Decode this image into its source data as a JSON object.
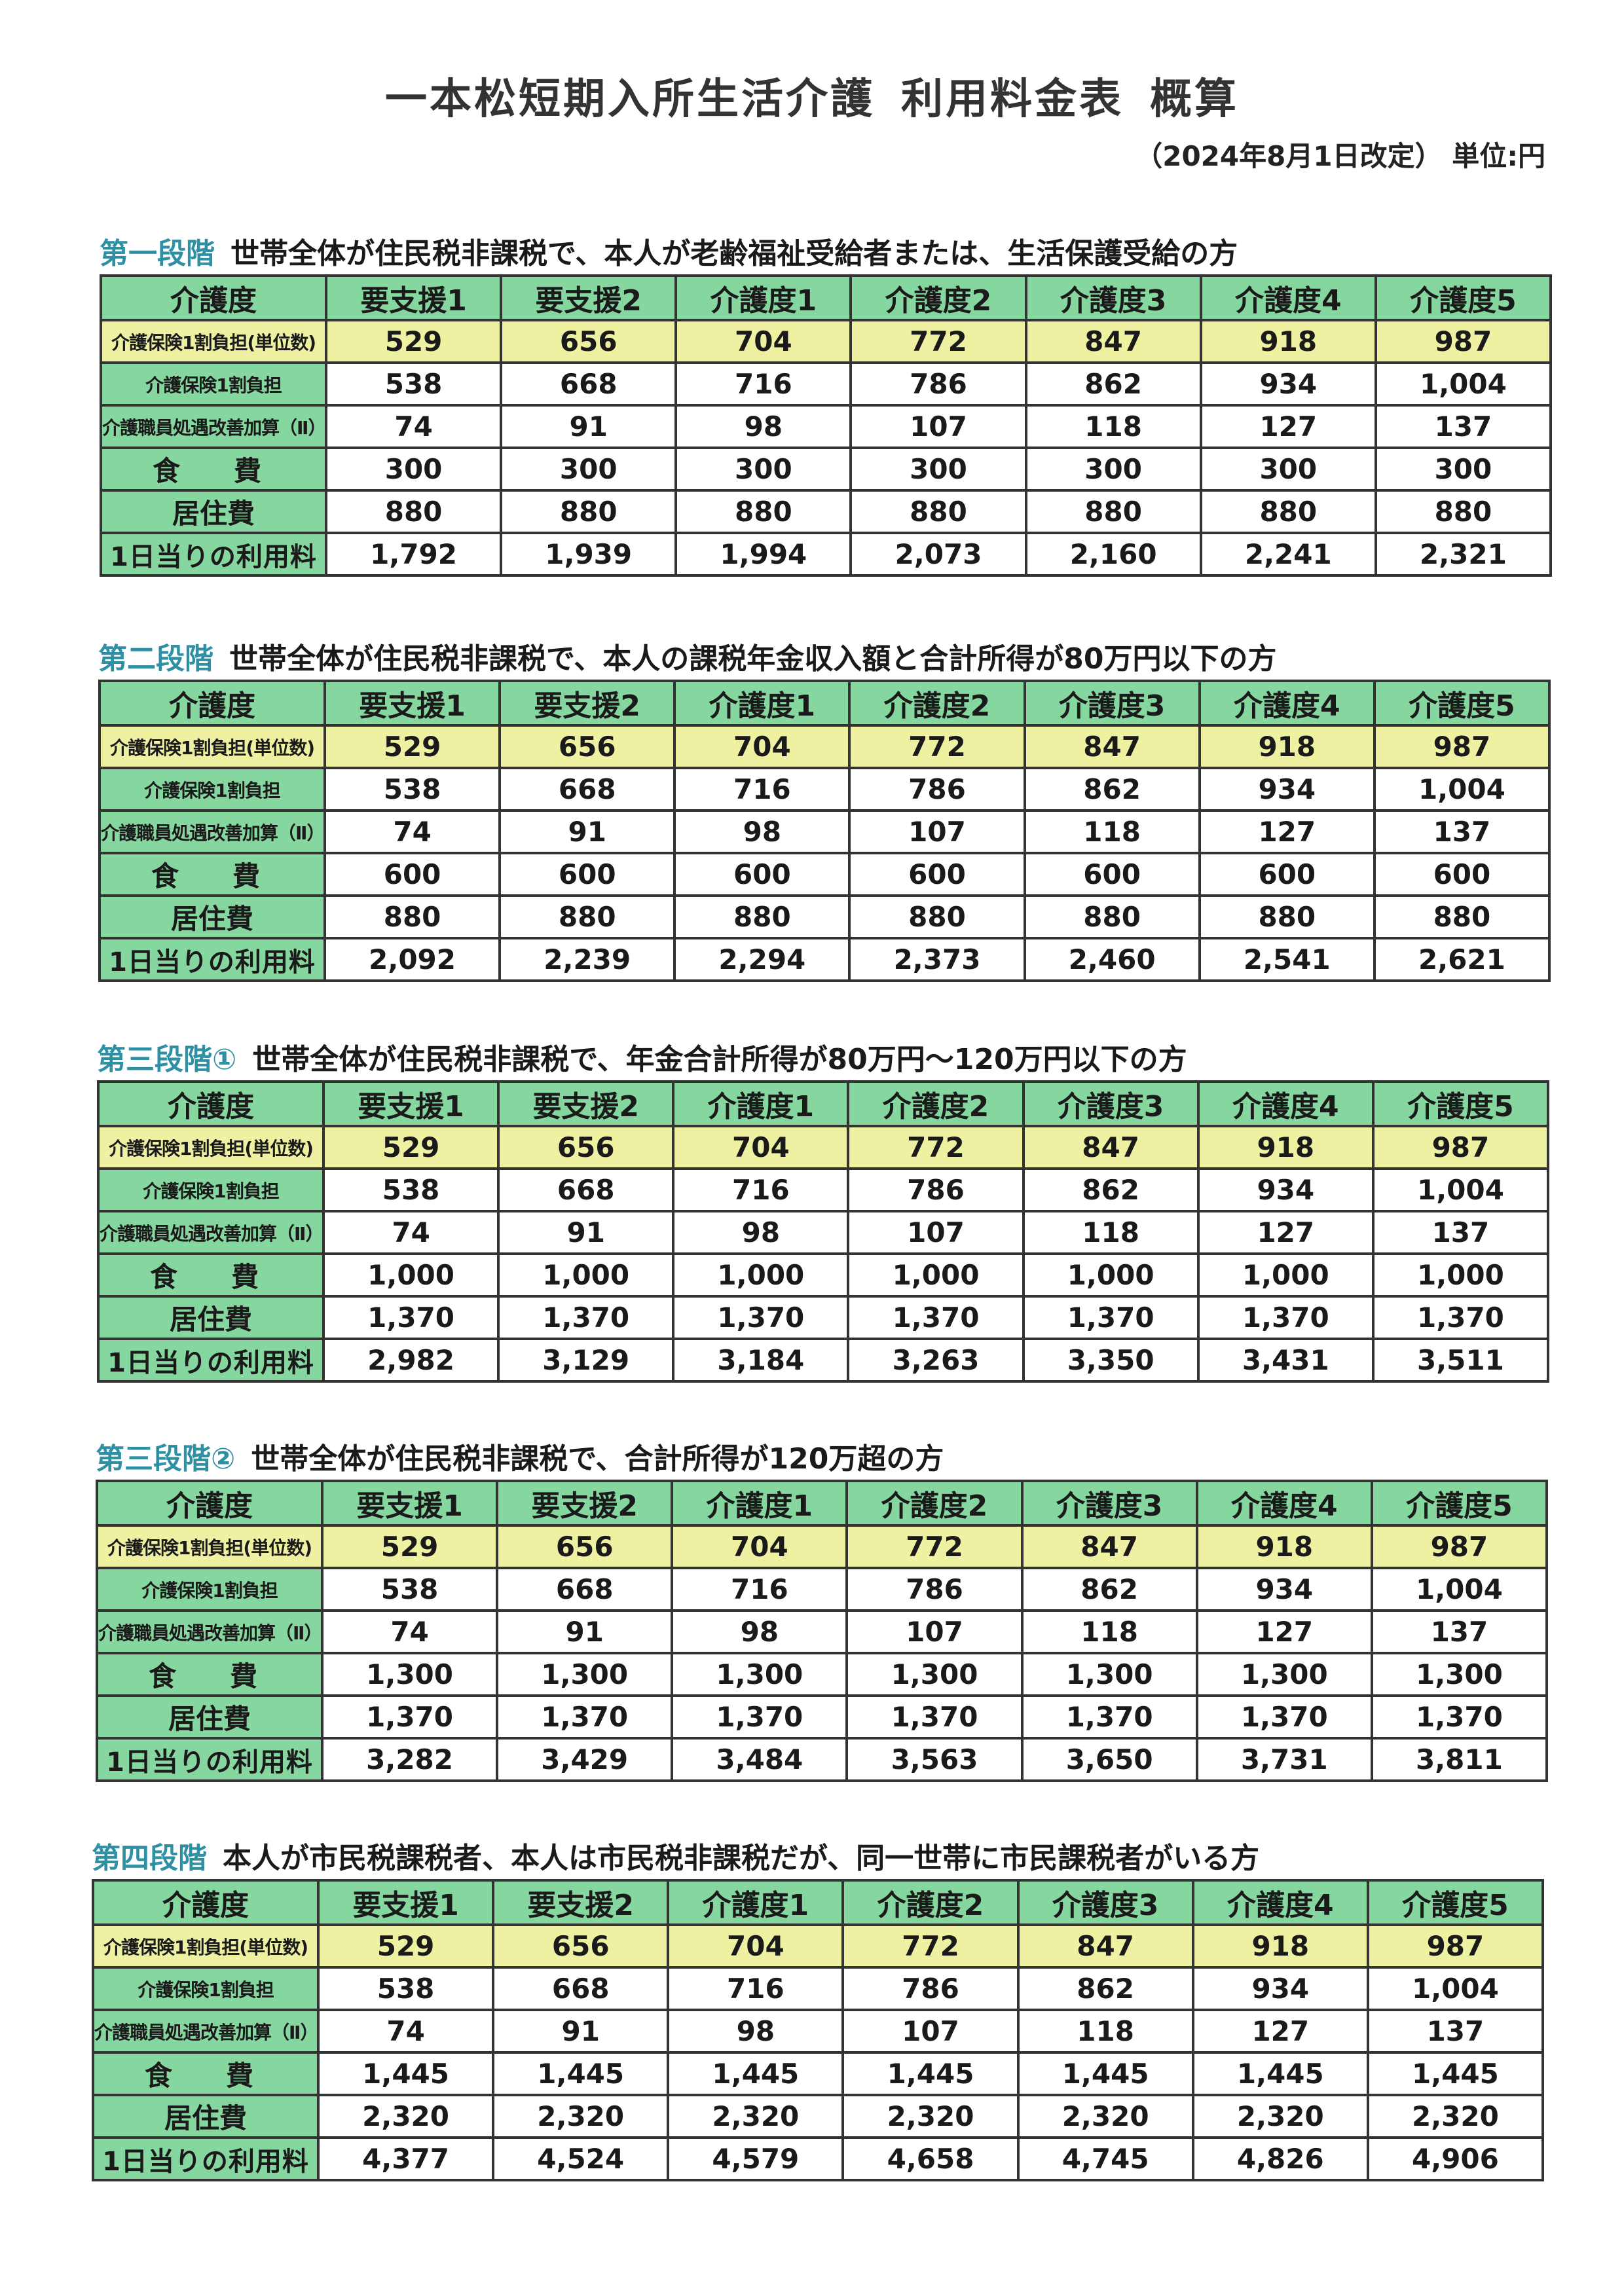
{
  "title": {
    "part1": "一本松短期入所生活介護",
    "part2": "利用料金表",
    "part3": "概算"
  },
  "subtitle": "（2024年8月1日改定） 単位:円",
  "colors": {
    "header_green": "#86d69f",
    "highlight_yellow": "#eef1a2",
    "stage_teal": "#2f8fa3"
  },
  "columns": [
    "介護度",
    "要支援1",
    "要支援2",
    "介護度1",
    "介護度2",
    "介護度3",
    "介護度4",
    "介護度5"
  ],
  "row_labels": [
    "介護保険1割負担(単位数)",
    "介護保険1割負担",
    "介護職員処遇改善加算（Ⅱ）",
    "食　費",
    "居住費",
    "1日当りの利用料"
  ],
  "sections": [
    {
      "stage": "第一段階",
      "description": "世帯全体が住民税非課税で、本人が老齢福祉受給者または、生活保護受給の方",
      "rows": [
        [
          "529",
          "656",
          "704",
          "772",
          "847",
          "918",
          "987"
        ],
        [
          "538",
          "668",
          "716",
          "786",
          "862",
          "934",
          "1,004"
        ],
        [
          "74",
          "91",
          "98",
          "107",
          "118",
          "127",
          "137"
        ],
        [
          "300",
          "300",
          "300",
          "300",
          "300",
          "300",
          "300"
        ],
        [
          "880",
          "880",
          "880",
          "880",
          "880",
          "880",
          "880"
        ],
        [
          "1,792",
          "1,939",
          "1,994",
          "2,073",
          "2,160",
          "2,241",
          "2,321"
        ]
      ]
    },
    {
      "stage": "第二段階",
      "description": "世帯全体が住民税非課税で、本人の課税年金収入額と合計所得が80万円以下の方",
      "rows": [
        [
          "529",
          "656",
          "704",
          "772",
          "847",
          "918",
          "987"
        ],
        [
          "538",
          "668",
          "716",
          "786",
          "862",
          "934",
          "1,004"
        ],
        [
          "74",
          "91",
          "98",
          "107",
          "118",
          "127",
          "137"
        ],
        [
          "600",
          "600",
          "600",
          "600",
          "600",
          "600",
          "600"
        ],
        [
          "880",
          "880",
          "880",
          "880",
          "880",
          "880",
          "880"
        ],
        [
          "2,092",
          "2,239",
          "2,294",
          "2,373",
          "2,460",
          "2,541",
          "2,621"
        ]
      ]
    },
    {
      "stage": "第三段階①",
      "description": "世帯全体が住民税非課税で、年金合計所得が80万円～120万円以下の方",
      "rows": [
        [
          "529",
          "656",
          "704",
          "772",
          "847",
          "918",
          "987"
        ],
        [
          "538",
          "668",
          "716",
          "786",
          "862",
          "934",
          "1,004"
        ],
        [
          "74",
          "91",
          "98",
          "107",
          "118",
          "127",
          "137"
        ],
        [
          "1,000",
          "1,000",
          "1,000",
          "1,000",
          "1,000",
          "1,000",
          "1,000"
        ],
        [
          "1,370",
          "1,370",
          "1,370",
          "1,370",
          "1,370",
          "1,370",
          "1,370"
        ],
        [
          "2,982",
          "3,129",
          "3,184",
          "3,263",
          "3,350",
          "3,431",
          "3,511"
        ]
      ]
    },
    {
      "stage": "第三段階②",
      "description": "世帯全体が住民税非課税で、合計所得が120万超の方",
      "rows": [
        [
          "529",
          "656",
          "704",
          "772",
          "847",
          "918",
          "987"
        ],
        [
          "538",
          "668",
          "716",
          "786",
          "862",
          "934",
          "1,004"
        ],
        [
          "74",
          "91",
          "98",
          "107",
          "118",
          "127",
          "137"
        ],
        [
          "1,300",
          "1,300",
          "1,300",
          "1,300",
          "1,300",
          "1,300",
          "1,300"
        ],
        [
          "1,370",
          "1,370",
          "1,370",
          "1,370",
          "1,370",
          "1,370",
          "1,370"
        ],
        [
          "3,282",
          "3,429",
          "3,484",
          "3,563",
          "3,650",
          "3,731",
          "3,811"
        ]
      ]
    },
    {
      "stage": "第四段階",
      "description": "本人が市民税課税者、本人は市民税非課税だが、同一世帯に市民課税者がいる方",
      "rows": [
        [
          "529",
          "656",
          "704",
          "772",
          "847",
          "918",
          "987"
        ],
        [
          "538",
          "668",
          "716",
          "786",
          "862",
          "934",
          "1,004"
        ],
        [
          "74",
          "91",
          "98",
          "107",
          "118",
          "127",
          "137"
        ],
        [
          "1,445",
          "1,445",
          "1,445",
          "1,445",
          "1,445",
          "1,445",
          "1,445"
        ],
        [
          "2,320",
          "2,320",
          "2,320",
          "2,320",
          "2,320",
          "2,320",
          "2,320"
        ],
        [
          "4,377",
          "4,524",
          "4,579",
          "4,658",
          "4,745",
          "4,826",
          "4,906"
        ]
      ]
    }
  ]
}
